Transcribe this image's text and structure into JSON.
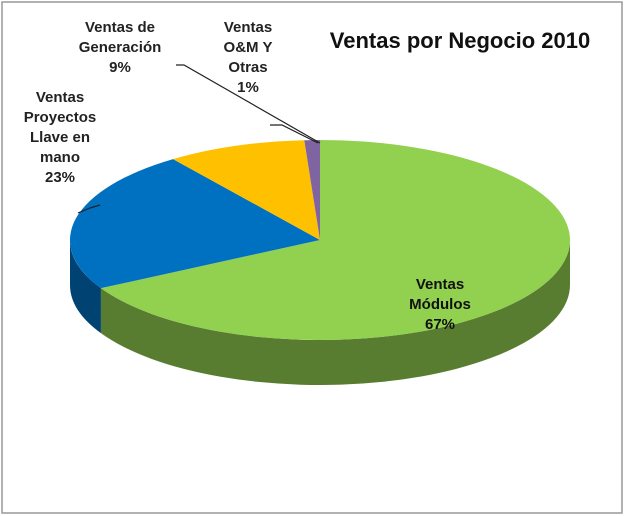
{
  "chart_data": {
    "type": "pie3d",
    "title": "Ventas por Negocio 2010",
    "categories": [
      "Ventas Módulos",
      "Ventas Proyectos Llave en mano",
      "Ventas de Generación",
      "Ventas O&M Y Otras"
    ],
    "values": [
      67,
      23,
      9,
      1
    ],
    "value_labels": [
      "67%",
      "23%",
      "9%",
      "1%"
    ],
    "colors": [
      "#92d050",
      "#0070c0",
      "#ffc000",
      "#8064a2"
    ]
  }
}
